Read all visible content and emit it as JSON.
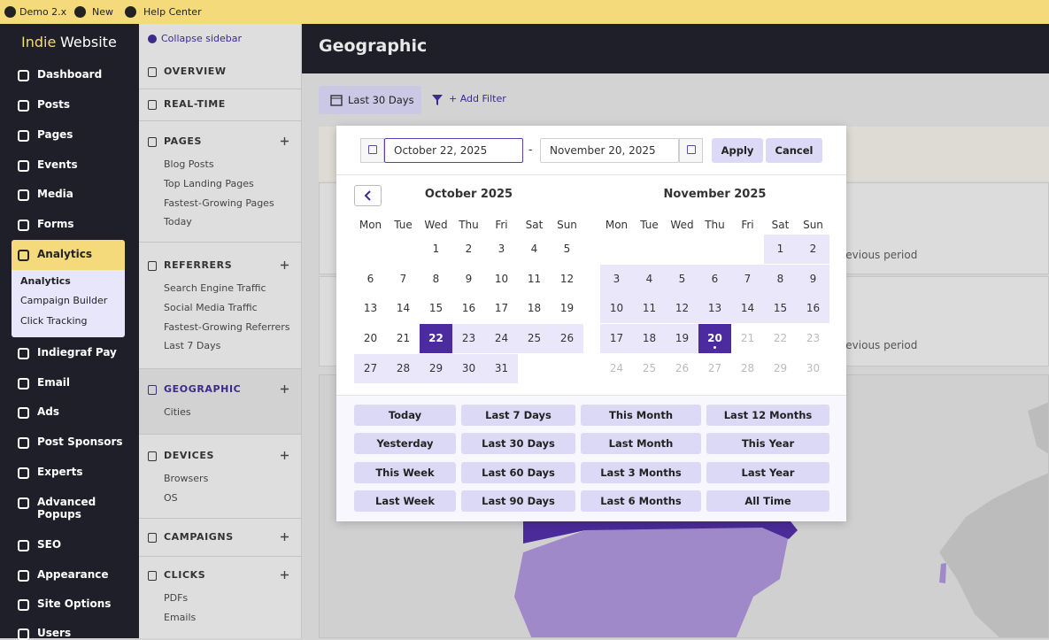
{
  "topbar": {
    "items": [
      "Demo 2.x",
      "New",
      "Help Center"
    ]
  },
  "sidebar": {
    "brand": {
      "first": "Indie",
      "second": "Website"
    },
    "menu": [
      "Dashboard",
      "Posts",
      "Pages",
      "Events",
      "Media",
      "Forms",
      "Analytics",
      "Indiegraf Pay",
      "Email",
      "Ads",
      "Post Sponsors",
      "Experts",
      "Advanced Popups",
      "SEO",
      "Appearance",
      "Site Options",
      "Users"
    ],
    "submenu": [
      "Analytics",
      "Campaign Builder",
      "Click Tracking"
    ]
  },
  "subnav": {
    "collapse": "Collapse sidebar",
    "sections": [
      {
        "title": "OVERVIEW"
      },
      {
        "title": "REAL-TIME"
      },
      {
        "title": "PAGES",
        "links": [
          "Blog Posts",
          "Top Landing Pages",
          "Fastest-Growing Pages",
          "Today"
        ]
      },
      {
        "title": "REFERRERS",
        "links": [
          "Search Engine Traffic",
          "Social Media Traffic",
          "Fastest-Growing Referrers",
          "Last 7 Days"
        ]
      },
      {
        "title": "GEOGRAPHIC",
        "links": [
          "Cities"
        ]
      },
      {
        "title": "DEVICES",
        "links": [
          "Browsers",
          "OS"
        ]
      },
      {
        "title": "CAMPAIGNS"
      },
      {
        "title": "CLICKS",
        "links": [
          "PDFs",
          "Emails"
        ]
      }
    ]
  },
  "main": {
    "title": "Geographic",
    "range_button": "Last 30 Days",
    "add_filter": "+ Add Filter",
    "cards": [
      "previous period",
      "previous period"
    ]
  },
  "datepicker": {
    "start": "October 22, 2025",
    "separator": "-",
    "end": "November 20, 2025",
    "apply": "Apply",
    "cancel": "Cancel",
    "weekdays": [
      "Mon",
      "Tue",
      "Wed",
      "Thu",
      "Fri",
      "Sat",
      "Sun"
    ],
    "calendars": [
      {
        "title": "October 2025",
        "weeks": [
          [
            null,
            null,
            1,
            2,
            3,
            4,
            5
          ],
          [
            6,
            7,
            8,
            9,
            10,
            11,
            12
          ],
          [
            13,
            14,
            15,
            16,
            17,
            18,
            19
          ],
          [
            20,
            21,
            22,
            23,
            24,
            25,
            26
          ],
          [
            27,
            28,
            29,
            30,
            31,
            null,
            null
          ]
        ]
      },
      {
        "title": "November 2025",
        "weeks": [
          [
            null,
            null,
            null,
            null,
            null,
            1,
            2
          ],
          [
            3,
            4,
            5,
            6,
            7,
            8,
            9
          ],
          [
            10,
            11,
            12,
            13,
            14,
            15,
            16
          ],
          [
            17,
            18,
            19,
            20,
            21,
            22,
            23
          ],
          [
            24,
            25,
            26,
            27,
            28,
            29,
            30
          ]
        ]
      }
    ],
    "presets": [
      [
        "Today",
        "Last 7 Days",
        "This Month",
        "Last 12 Months"
      ],
      [
        "Yesterday",
        "Last 30 Days",
        "Last Month",
        "This Year"
      ],
      [
        "This Week",
        "Last 60 Days",
        "Last 3 Months",
        "Last Year"
      ],
      [
        "Last Week",
        "Last 90 Days",
        "Last 6 Months",
        "All Time"
      ]
    ]
  }
}
